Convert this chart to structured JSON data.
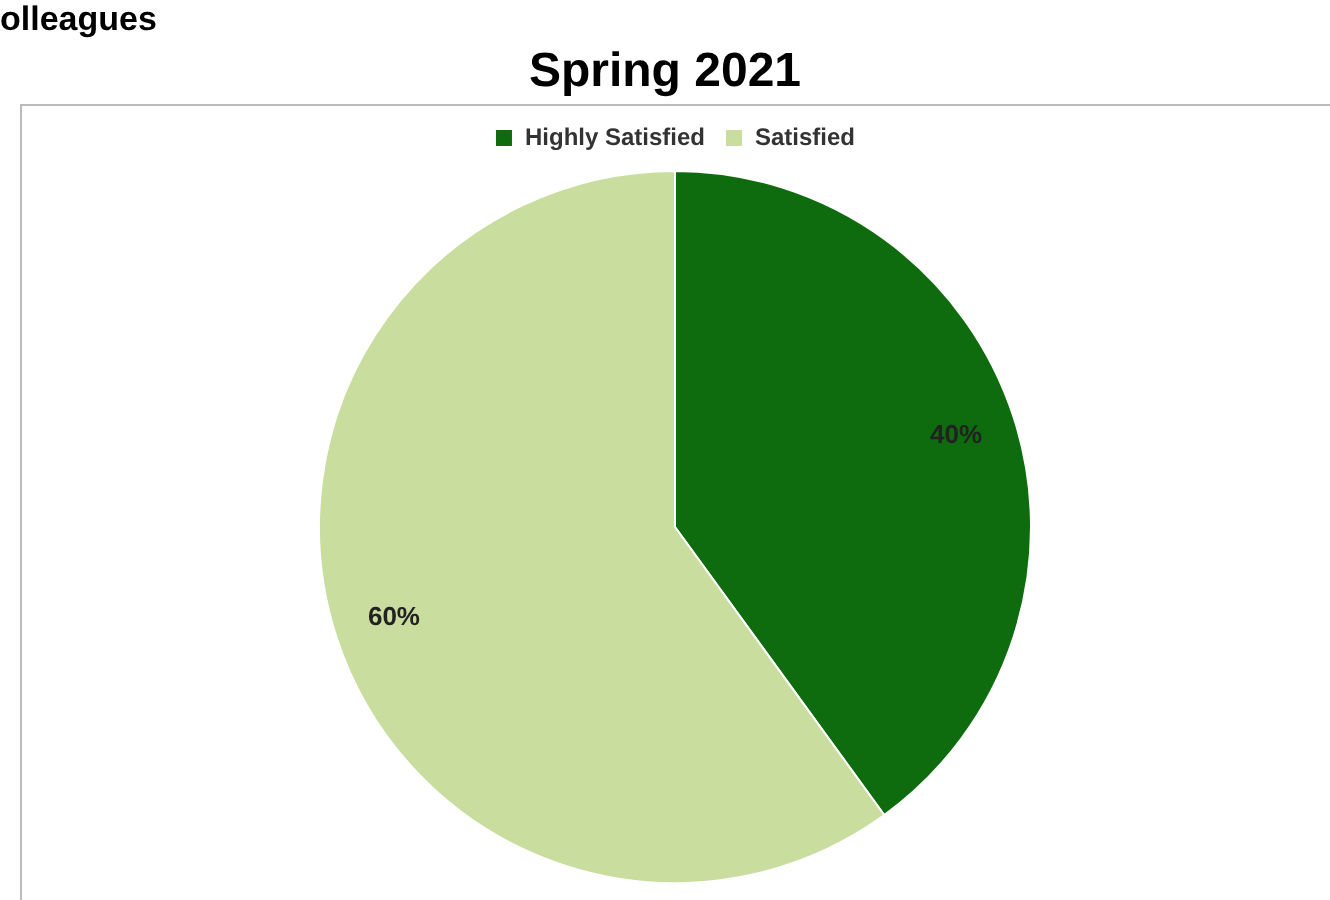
{
  "chart_data": {
    "type": "pie",
    "title": "Spring 2021",
    "annotations": [
      "olleagues"
    ],
    "categories": [
      "Highly Satisfied",
      "Satisfied"
    ],
    "values": [
      40,
      60
    ],
    "colors": [
      "#0e6b0e",
      "#c9dd9e"
    ],
    "value_labels": [
      "40%",
      "60%"
    ],
    "legend": "top"
  }
}
